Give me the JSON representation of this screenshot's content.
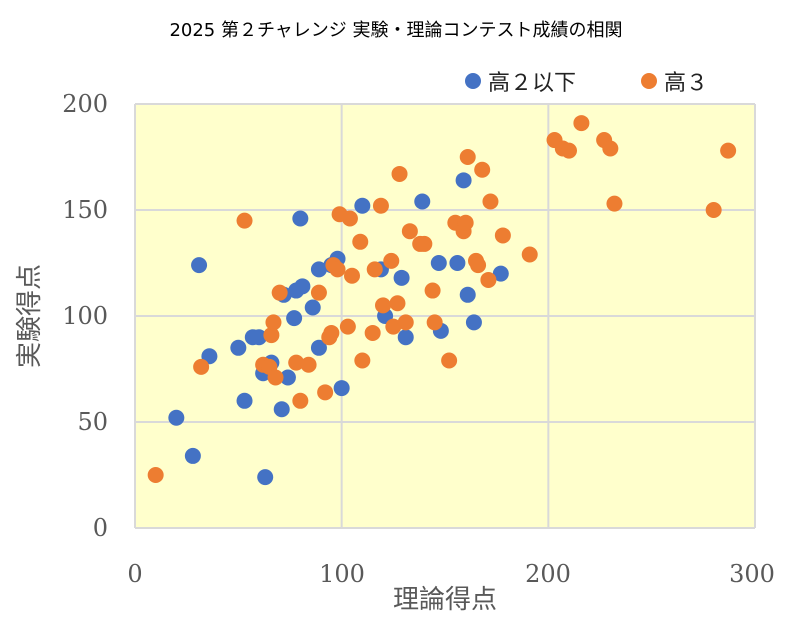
{
  "chart_data": {
    "type": "scatter",
    "title": "2025 第２チャレンジ 実験・理論コンテスト成績の相関",
    "xlabel": "理論得点",
    "ylabel": "実験得点",
    "xlim": [
      0,
      300
    ],
    "ylim": [
      0,
      200
    ],
    "xticks": [
      "0",
      "100",
      "200",
      "300"
    ],
    "yticks": [
      "0",
      "50",
      "100",
      "150",
      "200"
    ],
    "grid": true,
    "legend_position": "top-right",
    "plot_background": "#FFFFCC",
    "series": [
      {
        "name": "高２以下",
        "color": "#4472C4",
        "points": [
          [
            20,
            52
          ],
          [
            28,
            34
          ],
          [
            31,
            124
          ],
          [
            36,
            81
          ],
          [
            50,
            85
          ],
          [
            53,
            60
          ],
          [
            57,
            90
          ],
          [
            60,
            90
          ],
          [
            62,
            73
          ],
          [
            63,
            24
          ],
          [
            66,
            78
          ],
          [
            71,
            56
          ],
          [
            72,
            110
          ],
          [
            74,
            71
          ],
          [
            77,
            99
          ],
          [
            78,
            112
          ],
          [
            80,
            146
          ],
          [
            81,
            114
          ],
          [
            86,
            104
          ],
          [
            89,
            85
          ],
          [
            89,
            122
          ],
          [
            95,
            124
          ],
          [
            98,
            127
          ],
          [
            100,
            66
          ],
          [
            110,
            152
          ],
          [
            119,
            122
          ],
          [
            121,
            100
          ],
          [
            129,
            118
          ],
          [
            131,
            90
          ],
          [
            139,
            154
          ],
          [
            147,
            125
          ],
          [
            148,
            93
          ],
          [
            156,
            125
          ],
          [
            159,
            164
          ],
          [
            161,
            110
          ],
          [
            164,
            97
          ],
          [
            177,
            120
          ]
        ]
      },
      {
        "name": "高３",
        "color": "#ED7D31",
        "points": [
          [
            10,
            25
          ],
          [
            32,
            76
          ],
          [
            53,
            145
          ],
          [
            62,
            77
          ],
          [
            65,
            76
          ],
          [
            66,
            91
          ],
          [
            67,
            97
          ],
          [
            68,
            71
          ],
          [
            70,
            111
          ],
          [
            78,
            78
          ],
          [
            80,
            60
          ],
          [
            84,
            77
          ],
          [
            89,
            111
          ],
          [
            92,
            64
          ],
          [
            94,
            90
          ],
          [
            95,
            92
          ],
          [
            96,
            124
          ],
          [
            98,
            122
          ],
          [
            99,
            148
          ],
          [
            103,
            95
          ],
          [
            104,
            146
          ],
          [
            105,
            119
          ],
          [
            109,
            135
          ],
          [
            110,
            79
          ],
          [
            115,
            92
          ],
          [
            116,
            122
          ],
          [
            119,
            152
          ],
          [
            120,
            105
          ],
          [
            124,
            126
          ],
          [
            125,
            95
          ],
          [
            127,
            106
          ],
          [
            128,
            167
          ],
          [
            131,
            97
          ],
          [
            133,
            140
          ],
          [
            138,
            134
          ],
          [
            140,
            134
          ],
          [
            144,
            112
          ],
          [
            145,
            97
          ],
          [
            152,
            79
          ],
          [
            155,
            144
          ],
          [
            159,
            140
          ],
          [
            160,
            144
          ],
          [
            161,
            175
          ],
          [
            165,
            126
          ],
          [
            166,
            124
          ],
          [
            168,
            169
          ],
          [
            171,
            117
          ],
          [
            172,
            154
          ],
          [
            178,
            138
          ],
          [
            191,
            129
          ],
          [
            203,
            183
          ],
          [
            207,
            179
          ],
          [
            210,
            178
          ],
          [
            216,
            191
          ],
          [
            227,
            183
          ],
          [
            230,
            179
          ],
          [
            232,
            153
          ],
          [
            280,
            150
          ],
          [
            287,
            178
          ]
        ]
      }
    ]
  }
}
